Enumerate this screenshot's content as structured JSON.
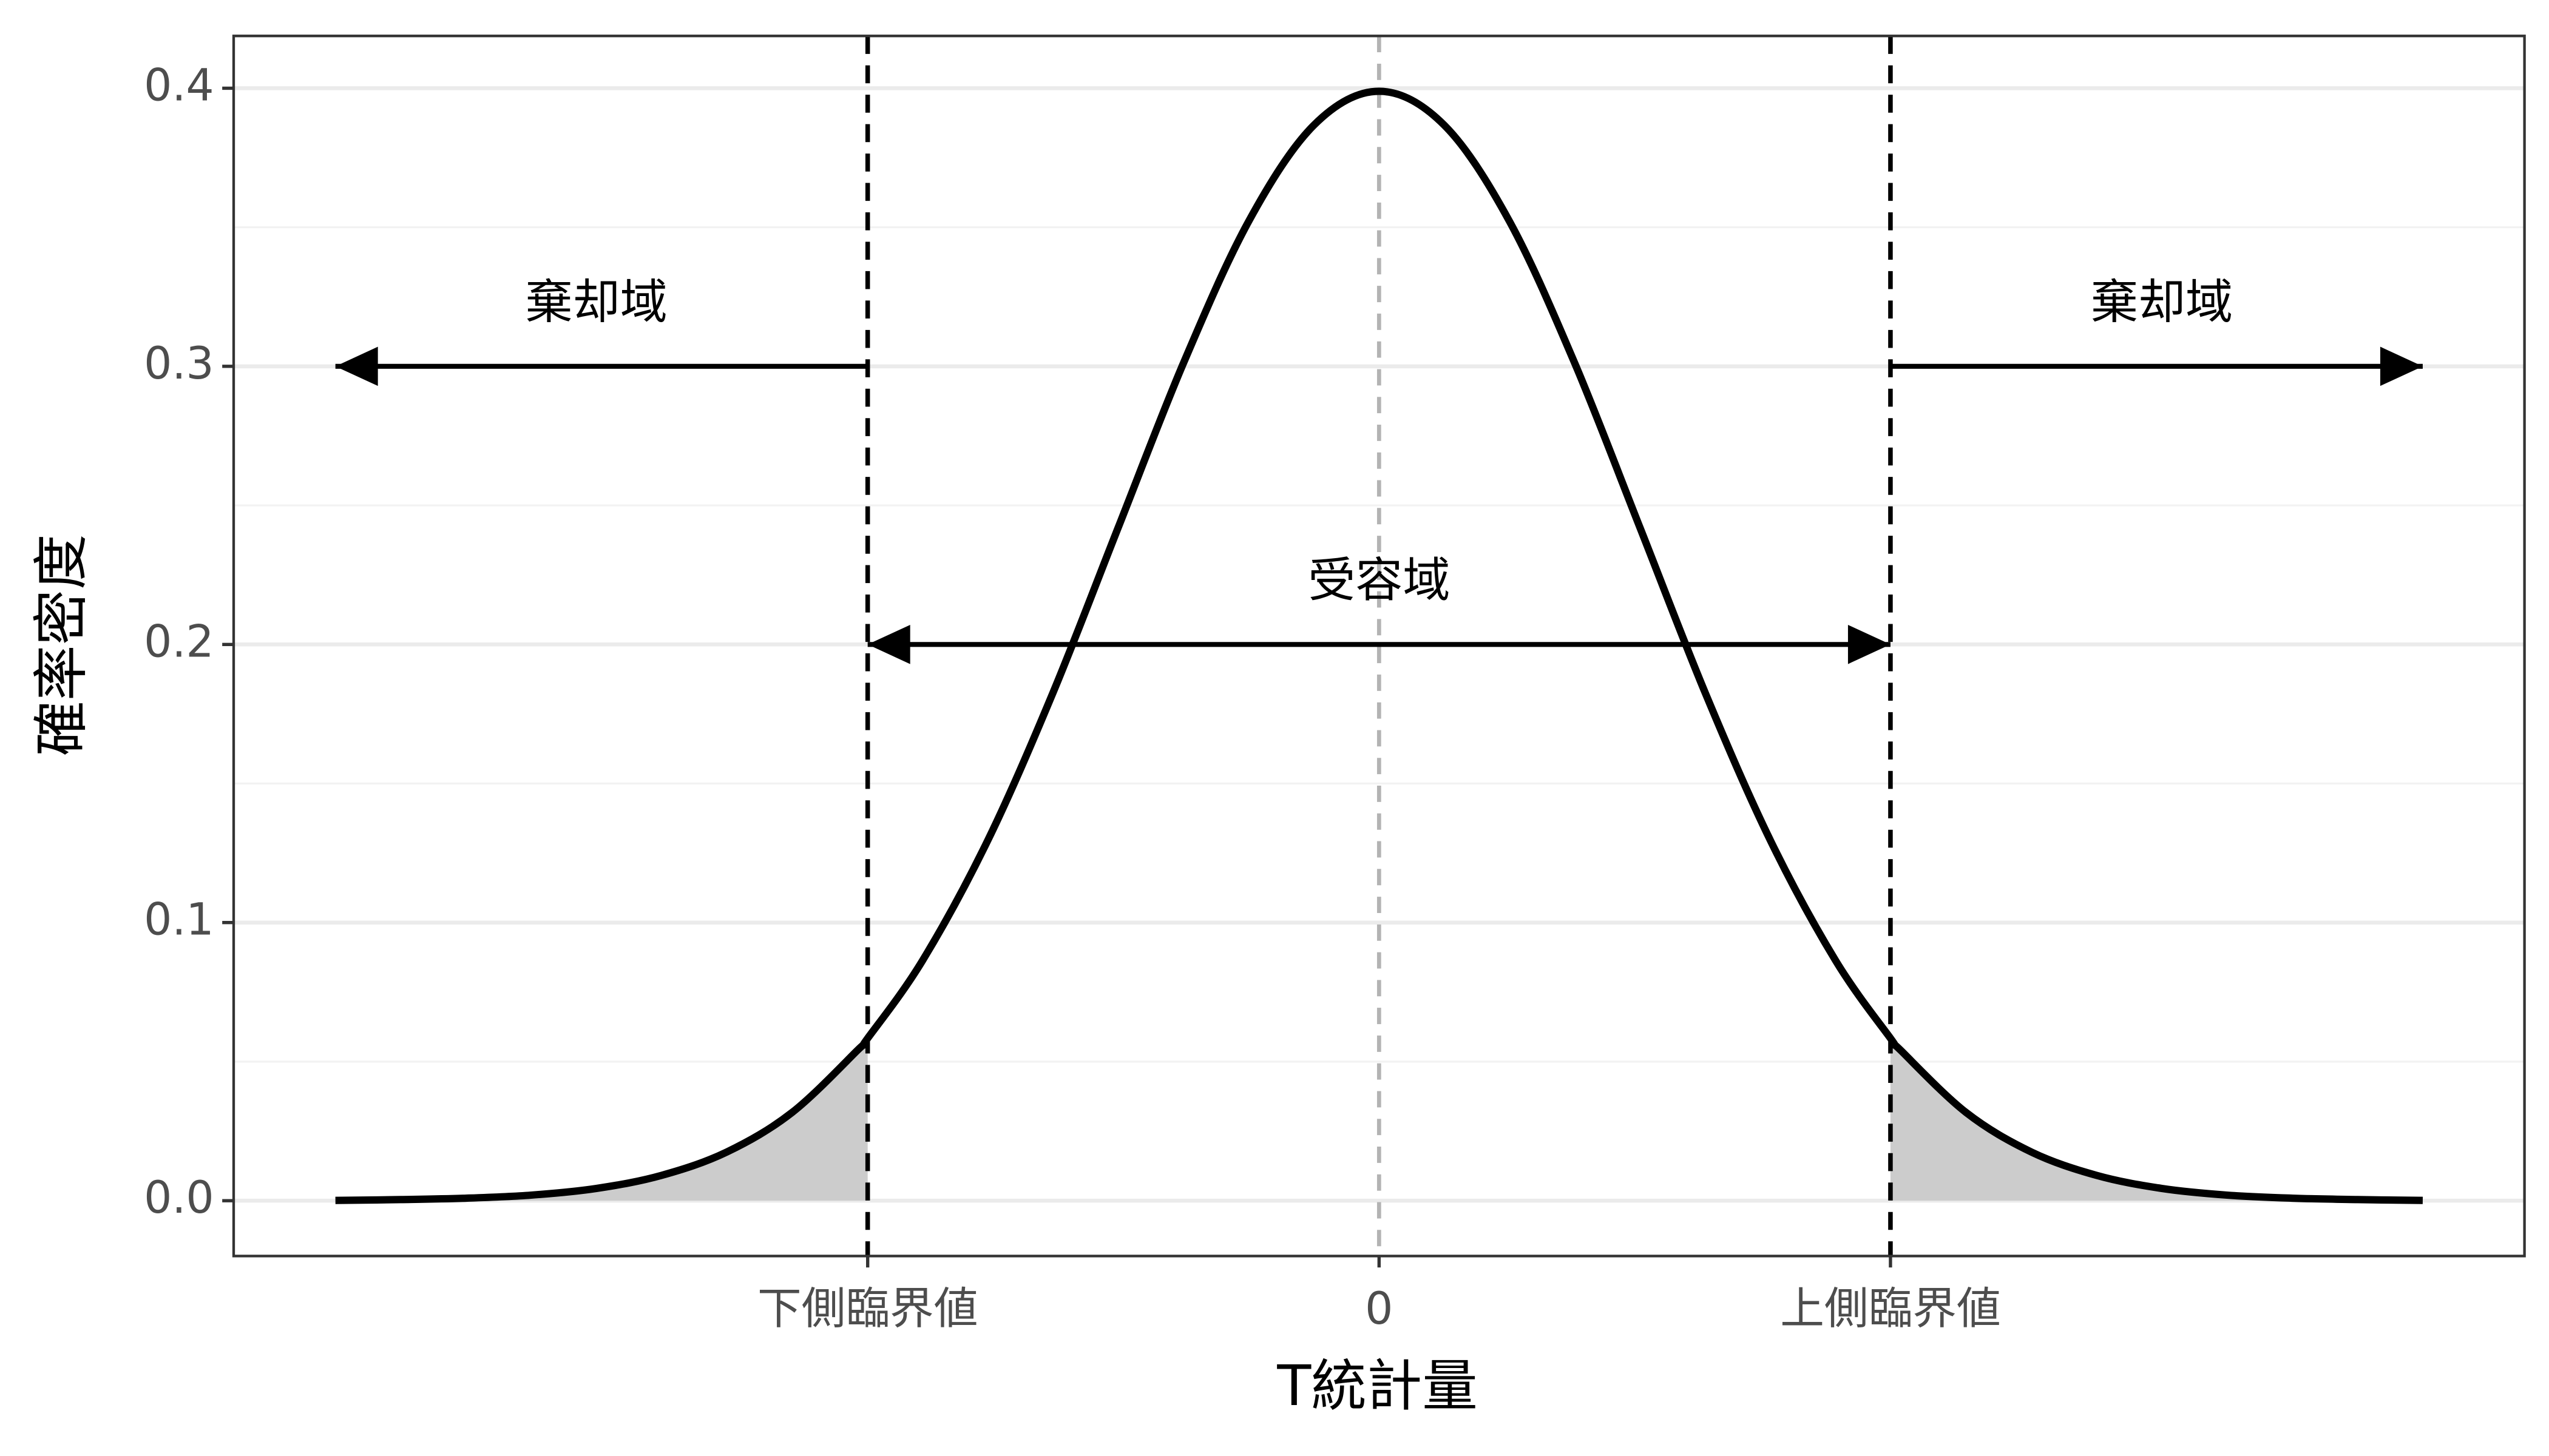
{
  "chart_data": {
    "type": "line",
    "x_label": "T統計量",
    "y_label": "確率密度",
    "x": [
      -4,
      -3.75,
      -3.5,
      -3.25,
      -3,
      -2.75,
      -2.5,
      -2.25,
      -2,
      -1.96,
      -1.75,
      -1.5,
      -1.25,
      -1,
      -0.75,
      -0.5,
      -0.25,
      0,
      0.25,
      0.5,
      0.75,
      1,
      1.25,
      1.5,
      1.75,
      1.96,
      2,
      2.25,
      2.5,
      2.75,
      3,
      3.25,
      3.5,
      3.75,
      4
    ],
    "series": [
      {
        "color": "#000000",
        "values": [
          0.0001,
          0.0004,
          0.0009,
          0.002,
          0.0044,
          0.0091,
          0.0175,
          0.0317,
          0.054,
          0.0584,
          0.0863,
          0.1295,
          0.1826,
          0.242,
          0.3011,
          0.3521,
          0.3867,
          0.3989,
          0.3867,
          0.3521,
          0.3011,
          0.242,
          0.1826,
          0.1295,
          0.0863,
          0.0584,
          0.054,
          0.0317,
          0.0175,
          0.0091,
          0.0044,
          0.002,
          0.0009,
          0.0004,
          0.0001
        ]
      }
    ],
    "critical_values": [
      -1.96,
      1.96
    ],
    "shade_color": "#cccccc",
    "xlim": [
      -4.39,
      4.39
    ],
    "ylim": [
      -0.0199,
      0.4188
    ],
    "xticks": [
      {
        "value": -1.96,
        "label": "下側臨界値"
      },
      0,
      {
        "value": 1.96,
        "label": "上側臨界値"
      }
    ],
    "yticks": [
      {
        "value": 0,
        "label": "0.0"
      },
      0.1,
      0.2,
      0.3,
      0.4
    ],
    "yminor": [
      0.05,
      0.15,
      0.25,
      0.35
    ],
    "grid": true,
    "arrows": [
      {
        "from": -1.96,
        "to": -4,
        "y": 0.3,
        "heads": "end"
      },
      {
        "from": 1.96,
        "to": 4,
        "y": 0.3,
        "heads": "end"
      },
      {
        "from": -1.96,
        "to": 1.96,
        "y": 0.2,
        "heads": "both"
      }
    ],
    "annotations": [
      {
        "text": "棄却域",
        "x": -3.0,
        "y": 0.322
      },
      {
        "text": "棄却域",
        "x": 3.0,
        "y": 0.322
      },
      {
        "text": "受容域",
        "x": 0,
        "y": 0.222
      }
    ]
  }
}
